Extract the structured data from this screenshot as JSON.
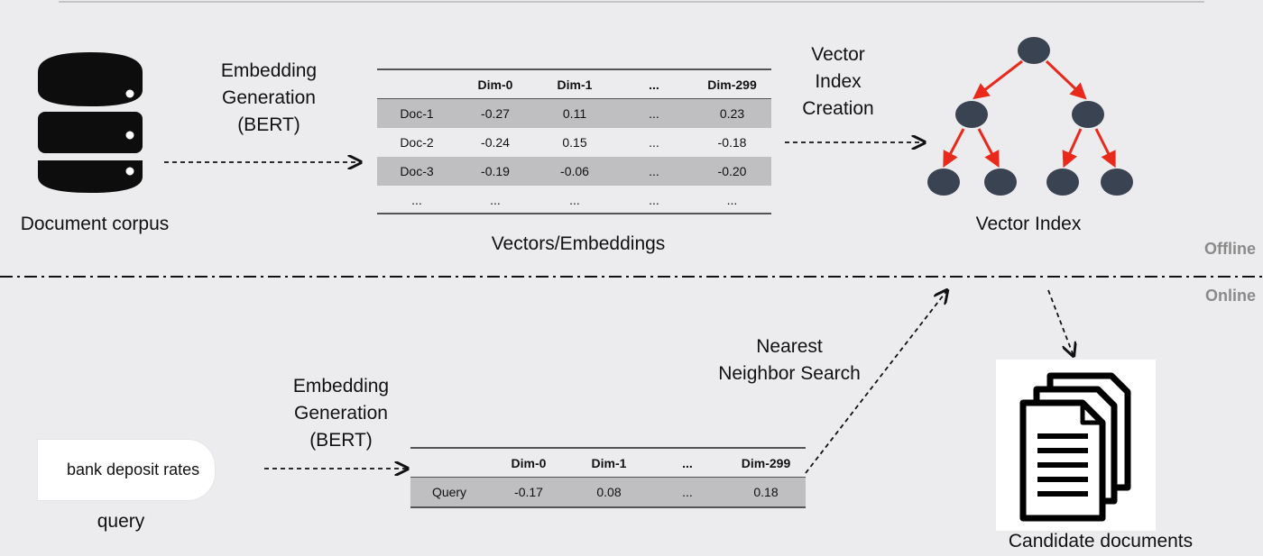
{
  "offline": {
    "corpus_label": "Document corpus",
    "embedding_step_label": [
      "Embedding",
      "Generation",
      "(BERT)"
    ],
    "table": {
      "columns": [
        "",
        "Dim-0",
        "Dim-1",
        "...",
        "Dim-299"
      ],
      "rows": [
        [
          "Doc-1",
          "-0.27",
          "0.11",
          "...",
          "0.23"
        ],
        [
          "Doc-2",
          "-0.24",
          "0.15",
          "...",
          "-0.18"
        ],
        [
          "Doc-3",
          "-0.19",
          "-0.06",
          "...",
          "-0.20"
        ],
        [
          "...",
          "...",
          "...",
          "...",
          "..."
        ]
      ],
      "caption": "Vectors/Embeddings"
    },
    "index_step_label": [
      "Vector",
      "Index",
      "Creation"
    ],
    "index_label": "Vector Index",
    "section_tag": "Offline"
  },
  "online": {
    "section_tag": "Online",
    "query_text": "bank deposit rates",
    "query_label": "query",
    "embedding_step_label": [
      "Embedding",
      "Generation",
      "(BERT)"
    ],
    "table": {
      "columns": [
        "",
        "Dim-0",
        "Dim-1",
        "...",
        "Dim-299"
      ],
      "rows": [
        [
          "Query",
          "-0.17",
          "0.08",
          "...",
          "0.18"
        ]
      ]
    },
    "search_step_label": [
      "Nearest",
      "Neighbor Search"
    ],
    "candidates_label": "Candidate documents"
  },
  "colors": {
    "background": "#ececee",
    "database": "#0d0d0d",
    "tree_node": "#3a4352",
    "tree_edge": "#e8291c",
    "row_shade": "#bfbfc2",
    "section_tag": "#8a8a8a"
  }
}
